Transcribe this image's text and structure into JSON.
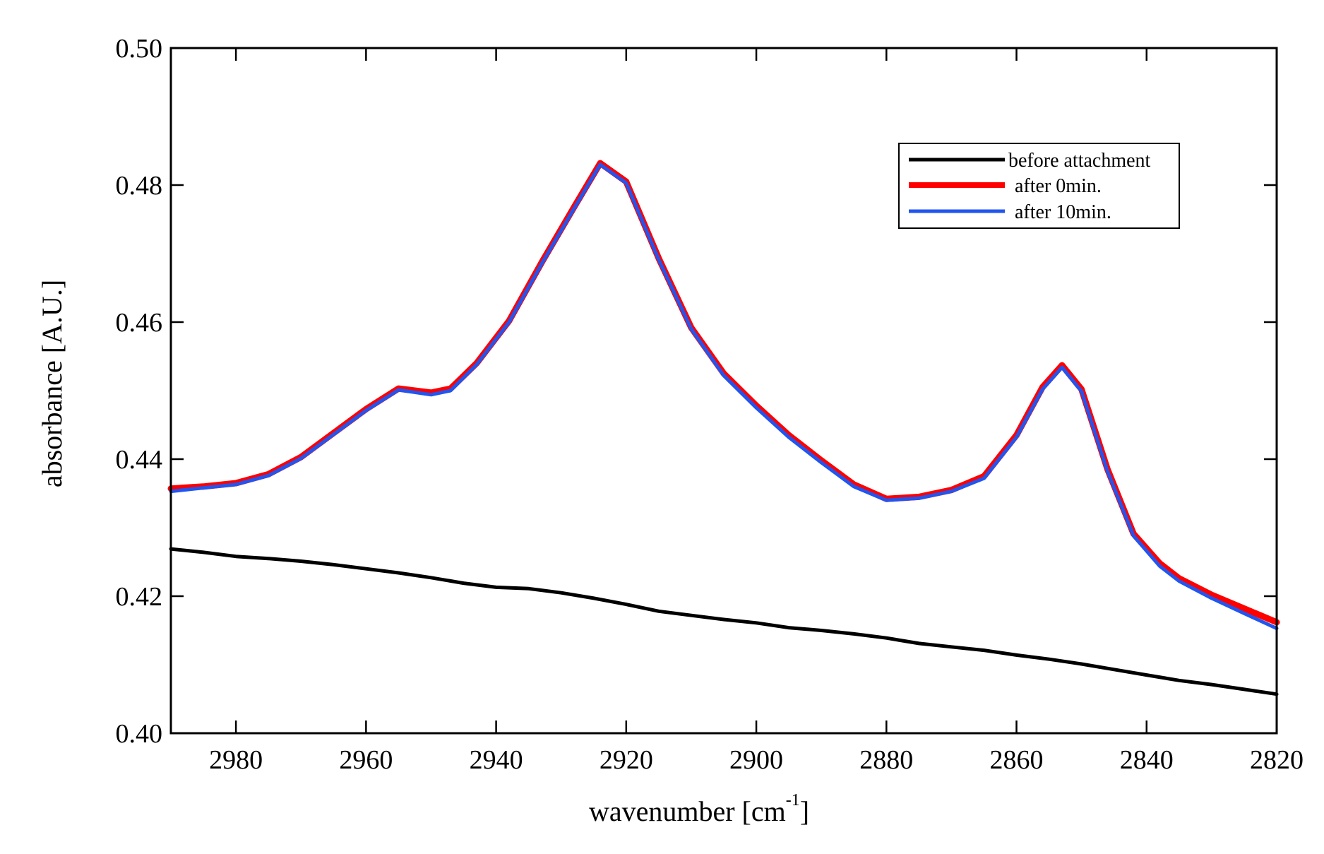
{
  "chart_data": {
    "type": "line",
    "title": "",
    "xlabel": "wavenumber [cm",
    "xlabel_sup": "-1",
    "xlabel_suffix": "]",
    "ylabel": "absorbance [A.U.]",
    "xlim": [
      2990,
      2820
    ],
    "ylim": [
      0.4,
      0.5
    ],
    "x_reversed": true,
    "x_ticks": [
      2980,
      2960,
      2940,
      2920,
      2900,
      2880,
      2860,
      2840,
      2820
    ],
    "x_tick_labels": [
      "2980",
      "2960",
      "2940",
      "2920",
      "2900",
      "2880",
      "2860",
      "2840",
      "2820"
    ],
    "y_ticks": [
      0.4,
      0.42,
      0.44,
      0.46,
      0.48,
      0.5
    ],
    "y_tick_labels": [
      "0.40",
      "0.42",
      "0.44",
      "0.46",
      "0.48",
      "0.50"
    ],
    "grid": false,
    "legend_position": "top-right",
    "series": [
      {
        "name": "before attachment",
        "color": "#000000",
        "points": [
          [
            2990,
            0.4269
          ],
          [
            2985,
            0.4264
          ],
          [
            2980,
            0.4258
          ],
          [
            2975,
            0.4255
          ],
          [
            2970,
            0.4251
          ],
          [
            2965,
            0.4246
          ],
          [
            2960,
            0.424
          ],
          [
            2955,
            0.4234
          ],
          [
            2950,
            0.4227
          ],
          [
            2945,
            0.4219
          ],
          [
            2940,
            0.4213
          ],
          [
            2935,
            0.4211
          ],
          [
            2930,
            0.4205
          ],
          [
            2925,
            0.4197
          ],
          [
            2920,
            0.4188
          ],
          [
            2915,
            0.4178
          ],
          [
            2910,
            0.4172
          ],
          [
            2905,
            0.4166
          ],
          [
            2900,
            0.4161
          ],
          [
            2895,
            0.4154
          ],
          [
            2890,
            0.415
          ],
          [
            2885,
            0.4145
          ],
          [
            2880,
            0.4139
          ],
          [
            2875,
            0.4131
          ],
          [
            2870,
            0.4126
          ],
          [
            2865,
            0.4121
          ],
          [
            2860,
            0.4114
          ],
          [
            2855,
            0.4108
          ],
          [
            2850,
            0.4101
          ],
          [
            2845,
            0.4093
          ],
          [
            2840,
            0.4085
          ],
          [
            2835,
            0.4077
          ],
          [
            2830,
            0.4071
          ],
          [
            2825,
            0.4064
          ],
          [
            2820,
            0.4057
          ]
        ]
      },
      {
        "name": "after 0min.",
        "color": "#ff0000",
        "points": [
          [
            2990,
            0.4357
          ],
          [
            2985,
            0.436
          ],
          [
            2980,
            0.4365
          ],
          [
            2975,
            0.4378
          ],
          [
            2970,
            0.4403
          ],
          [
            2965,
            0.4438
          ],
          [
            2960,
            0.4473
          ],
          [
            2955,
            0.4503
          ],
          [
            2950,
            0.4497
          ],
          [
            2947,
            0.4503
          ],
          [
            2943,
            0.454
          ],
          [
            2938,
            0.4602
          ],
          [
            2933,
            0.4687
          ],
          [
            2928,
            0.4768
          ],
          [
            2924,
            0.4832
          ],
          [
            2920,
            0.4805
          ],
          [
            2915,
            0.4693
          ],
          [
            2910,
            0.4592
          ],
          [
            2905,
            0.4525
          ],
          [
            2900,
            0.4478
          ],
          [
            2895,
            0.4435
          ],
          [
            2890,
            0.4398
          ],
          [
            2885,
            0.4363
          ],
          [
            2880,
            0.4342
          ],
          [
            2875,
            0.4345
          ],
          [
            2870,
            0.4355
          ],
          [
            2865,
            0.4375
          ],
          [
            2860,
            0.4435
          ],
          [
            2856,
            0.4505
          ],
          [
            2853,
            0.4537
          ],
          [
            2850,
            0.4502
          ],
          [
            2846,
            0.4385
          ],
          [
            2842,
            0.4291
          ],
          [
            2838,
            0.4248
          ],
          [
            2835,
            0.4226
          ],
          [
            2830,
            0.4202
          ],
          [
            2825,
            0.4182
          ],
          [
            2820,
            0.4162
          ]
        ]
      },
      {
        "name": "after 10min.",
        "color": "#2255ee",
        "points": [
          [
            2990,
            0.4353
          ],
          [
            2985,
            0.4358
          ],
          [
            2980,
            0.4363
          ],
          [
            2975,
            0.4376
          ],
          [
            2970,
            0.4401
          ],
          [
            2965,
            0.4436
          ],
          [
            2960,
            0.4471
          ],
          [
            2955,
            0.4501
          ],
          [
            2950,
            0.4494
          ],
          [
            2947,
            0.45
          ],
          [
            2943,
            0.4538
          ],
          [
            2938,
            0.46
          ],
          [
            2933,
            0.4685
          ],
          [
            2928,
            0.4766
          ],
          [
            2924,
            0.483
          ],
          [
            2920,
            0.4803
          ],
          [
            2915,
            0.4691
          ],
          [
            2910,
            0.459
          ],
          [
            2905,
            0.4522
          ],
          [
            2900,
            0.4475
          ],
          [
            2895,
            0.4432
          ],
          [
            2890,
            0.4395
          ],
          [
            2885,
            0.436
          ],
          [
            2880,
            0.434
          ],
          [
            2875,
            0.4343
          ],
          [
            2870,
            0.4353
          ],
          [
            2865,
            0.4372
          ],
          [
            2860,
            0.4432
          ],
          [
            2856,
            0.4502
          ],
          [
            2853,
            0.4534
          ],
          [
            2850,
            0.4499
          ],
          [
            2846,
            0.4382
          ],
          [
            2842,
            0.4288
          ],
          [
            2838,
            0.4244
          ],
          [
            2835,
            0.4222
          ],
          [
            2830,
            0.4197
          ],
          [
            2825,
            0.4175
          ],
          [
            2820,
            0.4153
          ]
        ]
      }
    ]
  }
}
